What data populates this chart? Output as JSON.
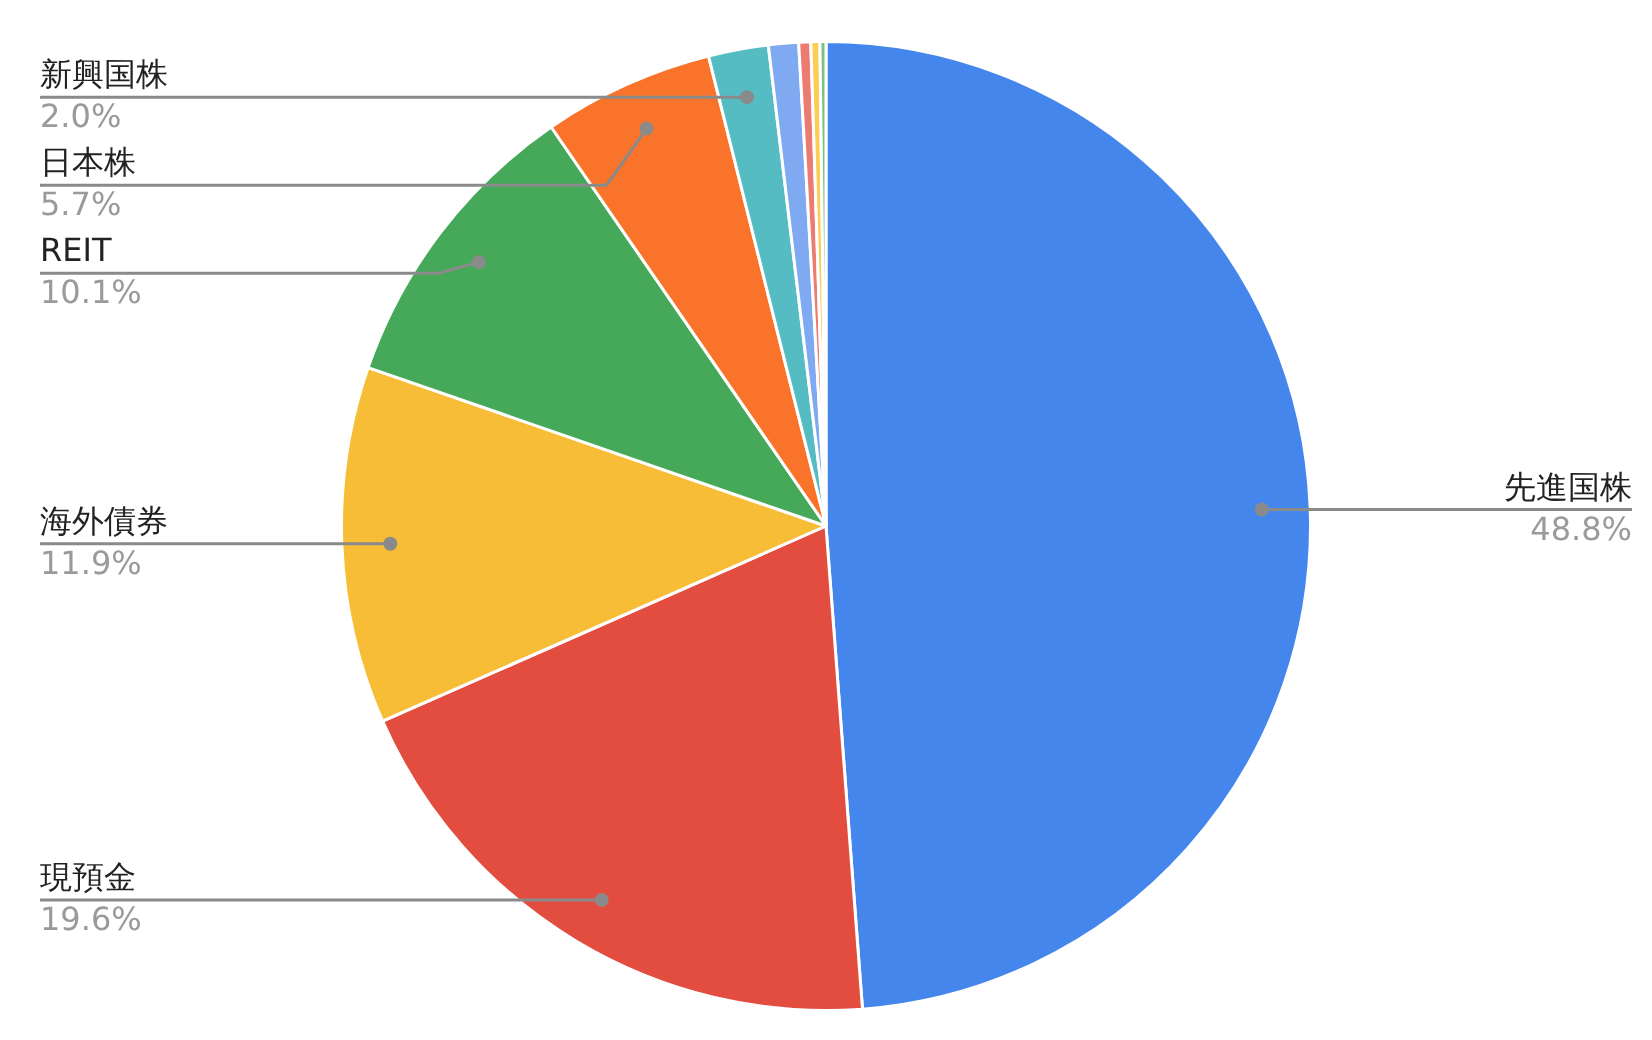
{
  "chart_data": {
    "type": "pie",
    "categories": [
      "先進国株",
      "現預金",
      "海外債券",
      "REIT",
      "日本株",
      "新興国株",
      null,
      null,
      null,
      null
    ],
    "values": [
      48.8,
      19.6,
      11.9,
      10.1,
      5.7,
      2.0,
      1.0,
      0.4,
      0.3,
      0.2
    ],
    "colors": [
      "#4586ec",
      "#e34d3f",
      "#f7bd36",
      "#46a95a",
      "#f9742a",
      "#56bcc4",
      "#7fa9f1",
      "#ec7c72",
      "#fbcd55",
      "#79c27f"
    ],
    "value_labels": [
      "48.8%",
      "19.6%",
      "11.9%",
      "10.1%",
      "5.7%",
      "2.0%",
      null,
      null,
      null,
      null
    ],
    "legend": false
  }
}
